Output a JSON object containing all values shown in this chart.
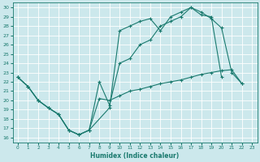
{
  "xlabel": "Humidex (Indice chaleur)",
  "bg_color": "#cce8ec",
  "grid_color": "#ffffff",
  "line_color": "#1a7a6e",
  "xlim": [
    -0.5,
    23.5
  ],
  "ylim": [
    15.5,
    30.5
  ],
  "xticks": [
    0,
    1,
    2,
    3,
    4,
    5,
    6,
    7,
    8,
    9,
    10,
    11,
    12,
    13,
    14,
    15,
    16,
    17,
    18,
    19,
    20,
    21,
    22,
    23
  ],
  "yticks": [
    16,
    17,
    18,
    19,
    20,
    21,
    22,
    23,
    24,
    25,
    26,
    27,
    28,
    29,
    30
  ],
  "line1_x": [
    0,
    1,
    2,
    3,
    4,
    5,
    6,
    7,
    9,
    10,
    11,
    12,
    13,
    14,
    15,
    16,
    17,
    18,
    19,
    20
  ],
  "line1_y": [
    22.5,
    21.5,
    20.0,
    19.2,
    18.5,
    16.8,
    16.3,
    16.8,
    19.2,
    27.5,
    28.0,
    28.5,
    28.8,
    27.5,
    29.0,
    29.5,
    30.0,
    29.2,
    29.0,
    22.5
  ],
  "line2_x": [
    0,
    1,
    2,
    3,
    4,
    5,
    6,
    7,
    8,
    9,
    10,
    11,
    12,
    13,
    14,
    15,
    16,
    17,
    18,
    19,
    20,
    21,
    22
  ],
  "line2_y": [
    22.5,
    21.5,
    20.0,
    19.2,
    18.5,
    16.8,
    16.3,
    16.8,
    22.0,
    19.5,
    24.0,
    24.5,
    26.0,
    26.5,
    28.0,
    28.5,
    29.0,
    30.0,
    29.5,
    28.8,
    27.8,
    23.0,
    21.8
  ],
  "line3_x": [
    0,
    1,
    2,
    3,
    4,
    5,
    6,
    7,
    8,
    9,
    10,
    11,
    12,
    13,
    14,
    15,
    16,
    17,
    18,
    19,
    20,
    21,
    22
  ],
  "line3_y": [
    22.5,
    21.5,
    20.0,
    19.2,
    18.5,
    16.8,
    16.3,
    16.8,
    20.2,
    20.0,
    20.5,
    21.0,
    21.2,
    21.5,
    21.8,
    22.0,
    22.2,
    22.5,
    22.8,
    23.0,
    23.2,
    23.3,
    21.8
  ]
}
